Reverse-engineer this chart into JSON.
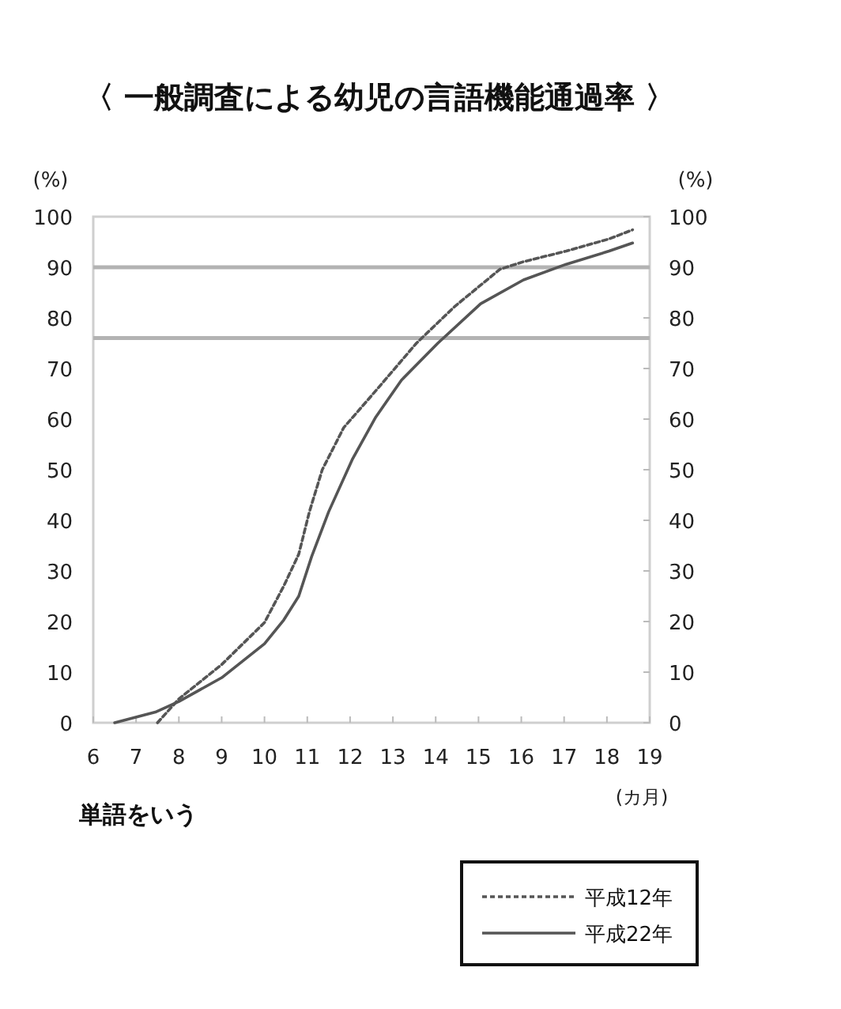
{
  "chart_data": {
    "type": "line",
    "title": "〈 一般調査による幼児の言語機能通過率 〉",
    "xlabel": "(カ月)",
    "ylabel": "(%)",
    "y2label": "(%)",
    "annotations": [
      "単語をいう"
    ],
    "xlim": [
      6,
      19
    ],
    "xticks": [
      6,
      7,
      8,
      9,
      10,
      11,
      12,
      13,
      14,
      15,
      16,
      17,
      18,
      19
    ],
    "ylim": [
      0,
      100
    ],
    "yticks": [
      0,
      10,
      20,
      30,
      40,
      50,
      60,
      70,
      80,
      90,
      100
    ],
    "y2lim": [
      0,
      100
    ],
    "y2ticks": [
      0,
      10,
      20,
      30,
      40,
      50,
      60,
      70,
      80,
      90,
      100
    ],
    "legend": "bottom right",
    "ref_lines": [
      {
        "axis": "y",
        "value": 90,
        "color": "#b3b3b3"
      },
      {
        "axis": "y",
        "value": 76,
        "color": "#b3b3b3"
      }
    ],
    "series": [
      {
        "name": "平成12年",
        "color": "#555555",
        "line_style": "dashed",
        "x": [
          7.5,
          8,
          9,
          10,
          10.45,
          10.8,
          11.05,
          11.35,
          11.85,
          12.6,
          13.55,
          14.45,
          15.5,
          16.05,
          17.05,
          18.05,
          18.6
        ],
        "values": [
          0,
          4.7,
          11.5,
          19.8,
          27,
          33.3,
          41.7,
          50,
          58.3,
          65.6,
          75,
          82.3,
          89.6,
          91.1,
          93.2,
          95.6,
          97.4
        ]
      },
      {
        "name": "平成22年",
        "color": "#555555",
        "line_style": "solid",
        "x": [
          6.5,
          7.45,
          8,
          9,
          10,
          10.45,
          10.8,
          11.1,
          11.5,
          12.05,
          12.6,
          13.2,
          14.05,
          15.05,
          16.05,
          17.05,
          18.05,
          18.6
        ],
        "values": [
          0,
          2.1,
          4.2,
          8.9,
          15.6,
          20.3,
          25,
          32.8,
          41.7,
          52,
          60.4,
          67.7,
          75,
          82.8,
          87.5,
          90.6,
          93.2,
          94.8
        ]
      }
    ]
  }
}
